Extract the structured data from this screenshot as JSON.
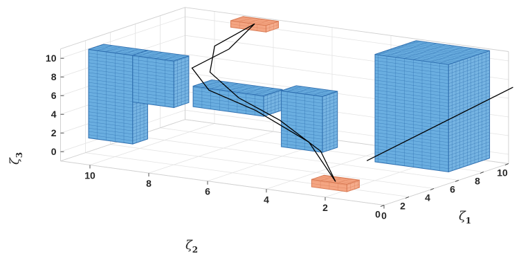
{
  "chart_data": {
    "type": "3d-voxel-scatter",
    "title": "",
    "axes": {
      "x": {
        "label": "ζ",
        "label_sub": "2",
        "ticks": [
          "10",
          "8",
          "6",
          "4",
          "2",
          "0"
        ],
        "range": [
          0,
          11
        ]
      },
      "y": {
        "label": "ζ",
        "label_sub": "1",
        "ticks": [
          "0",
          "2",
          "4",
          "6",
          "8",
          "10"
        ],
        "range": [
          0,
          10
        ]
      },
      "z": {
        "label": "ζ",
        "label_sub": "3",
        "ticks": [
          "0",
          "2",
          "4",
          "6",
          "8",
          "10"
        ],
        "range": [
          -1,
          11
        ]
      }
    },
    "grid": true,
    "obstacles": {
      "color": "#6aaee0",
      "edge_color": "#2f6fb0",
      "boxes": [
        {
          "x": [
            8.8,
            10.3
          ],
          "y": [
            0.6,
            1.8
          ],
          "z": [
            1.5,
            11
          ]
        },
        {
          "x": [
            7.4,
            8.8
          ],
          "y": [
            0.6,
            1.8
          ],
          "z": [
            6.0,
            11
          ]
        },
        {
          "x": [
            4.6,
            7.0
          ],
          "y": [
            1.2,
            2.7
          ],
          "z": [
            6.0,
            8.2
          ]
        },
        {
          "x": [
            2.6,
            4.0
          ],
          "y": [
            1.2,
            2.4
          ],
          "z": [
            3.0,
            9.0
          ]
        },
        {
          "x": [
            -0.5,
            2.0
          ],
          "y": [
            4.0,
            7.3
          ],
          "z": [
            1.0,
            12.5
          ]
        }
      ]
    },
    "markers": {
      "color": "#f4a582",
      "edge_color": "#d97b55",
      "boxes": [
        {
          "name": "start",
          "x": [
            7.4,
            8.6
          ],
          "y": [
            8.0,
            9.0
          ],
          "z": [
            10.8,
            11.5
          ]
        },
        {
          "name": "goal",
          "x": [
            1.6,
            2.8
          ],
          "y": [
            0.8,
            1.8
          ],
          "z": [
            -0.6,
            0.2
          ]
        }
      ]
    },
    "series": [
      {
        "color": "#000000",
        "points": [
          [
            8.0,
            8.5,
            11.2
          ],
          [
            7.6,
            5.5,
            10.0
          ],
          [
            7.8,
            3.0,
            9.0
          ],
          [
            6.8,
            2.0,
            7.5
          ],
          [
            5.2,
            2.0,
            6.0
          ],
          [
            3.4,
            2.0,
            3.4
          ],
          [
            2.2,
            1.3,
            0.0
          ]
        ]
      },
      {
        "color": "#000000",
        "points": [
          [
            8.0,
            8.5,
            11.2
          ],
          [
            8.3,
            6.0,
            9.8
          ],
          [
            7.4,
            3.5,
            8.5
          ],
          [
            6.0,
            2.5,
            6.8
          ],
          [
            4.6,
            2.5,
            5.0
          ],
          [
            3.0,
            2.0,
            2.6
          ],
          [
            2.2,
            1.3,
            0.0
          ]
        ]
      },
      {
        "color": "#000000",
        "points": [
          [
            1.6,
            2.4,
            2.0
          ],
          [
            -1.0,
            8.0,
            8.5
          ]
        ]
      }
    ]
  }
}
